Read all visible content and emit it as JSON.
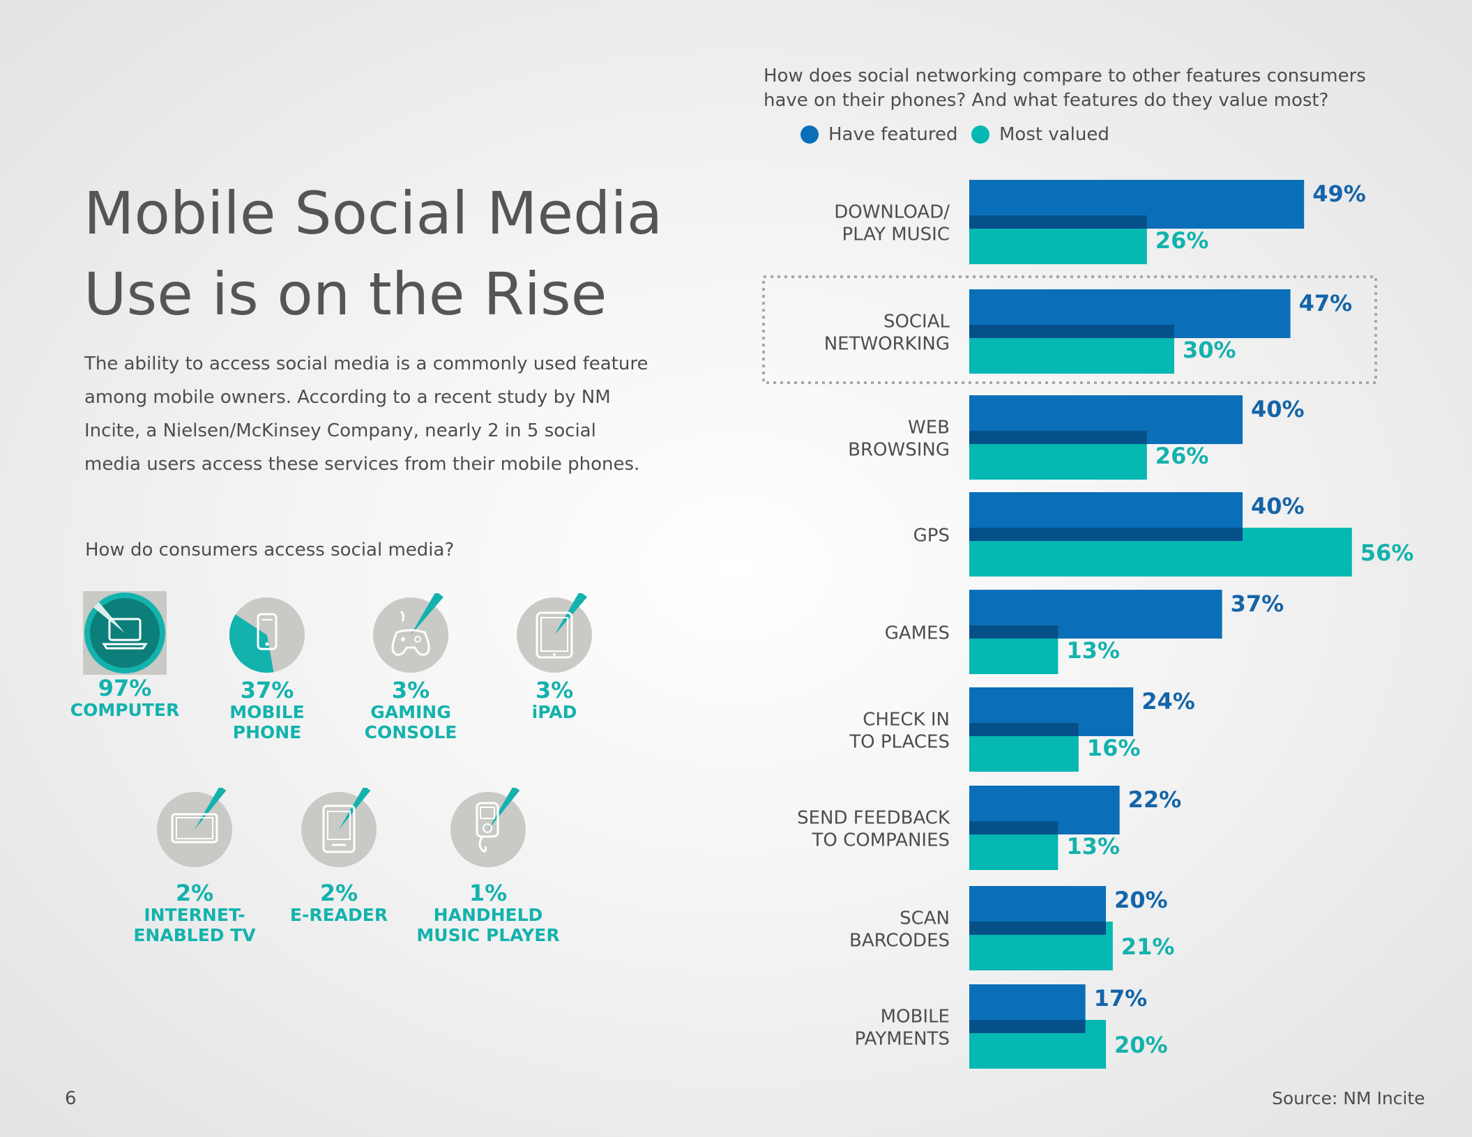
{
  "page": {
    "title": "Mobile Social Media Use is on the Rise",
    "intro": "The ability to access social media is a commonly used feature among mobile owners. According to a recent study by NM Incite, a Nielsen/McKinsey Company, nearly 2 in 5 social media users access these services from their mobile phones.",
    "access_question": "How do consumers access social media?",
    "page_number": "6",
    "source": "Source: NM Incite"
  },
  "devices": [
    {
      "pct": "97%",
      "label": "COMPUTER",
      "value": 97,
      "icon": "laptop-icon"
    },
    {
      "pct": "37%",
      "label": "MOBILE\nPHONE",
      "value": 37,
      "icon": "mobile-phone-icon"
    },
    {
      "pct": "3%",
      "label": "GAMING\nCONSOLE",
      "value": 3,
      "icon": "gamepad-icon"
    },
    {
      "pct": "3%",
      "label": "iPAD",
      "value": 3,
      "icon": "tablet-icon"
    },
    {
      "pct": "2%",
      "label": "INTERNET-\nENABLED TV",
      "value": 2,
      "icon": "tv-icon"
    },
    {
      "pct": "2%",
      "label": "E-READER",
      "value": 2,
      "icon": "ereader-icon"
    },
    {
      "pct": "1%",
      "label": "HANDHELD\nMUSIC PLAYER",
      "value": 1,
      "icon": "music-player-icon"
    }
  ],
  "colors": {
    "have_featured": "#0a6fb8",
    "most_valued": "#05b8b2",
    "overlap": "#06508a",
    "device_teal": "#13b2ad",
    "device_dark": "#0d7f7a",
    "device_grey": "#c9c9c6",
    "highlight_border": "#a8a8a8"
  },
  "chart_data": {
    "type": "bar",
    "orientation": "horizontal",
    "title": "How does social networking compare to other features consumers have on their phones? And what features do they value most?",
    "categories": [
      "DOWNLOAD/\nPLAY MUSIC",
      "SOCIAL\nNETWORKING",
      "WEB\nBROWSING",
      "GPS",
      "GAMES",
      "CHECK IN\nTO PLACES",
      "SEND FEEDBACK\nTO COMPANIES",
      "SCAN\nBARCODES",
      "MOBILE\nPAYMENTS"
    ],
    "series": [
      {
        "name": "Have featured",
        "values": [
          49,
          47,
          40,
          40,
          37,
          24,
          22,
          20,
          17
        ],
        "labels": [
          "49%",
          "47%",
          "40%",
          "40%",
          "37%",
          "24%",
          "22%",
          "20%",
          "17%"
        ]
      },
      {
        "name": "Most valued",
        "values": [
          26,
          30,
          26,
          56,
          13,
          16,
          13,
          21,
          20
        ],
        "labels": [
          "26%",
          "30%",
          "26%",
          "56%",
          "13%",
          "16%",
          "13%",
          "21%",
          "20%"
        ]
      }
    ],
    "highlighted_category": "SOCIAL\nNETWORKING",
    "xlabel": "",
    "ylabel": "",
    "xlim": [
      0,
      60
    ],
    "grid": false,
    "legend": "top-left"
  }
}
